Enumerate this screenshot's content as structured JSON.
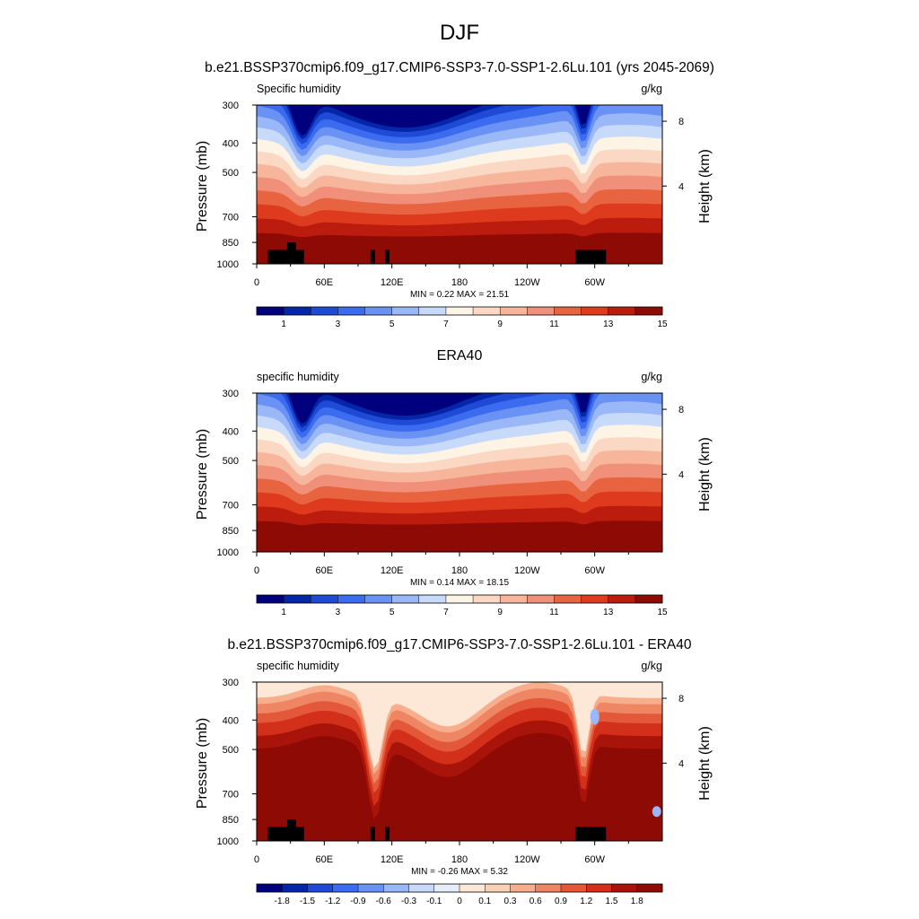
{
  "figure": {
    "title": "DJF"
  },
  "chart_data": [
    {
      "type": "heatmap",
      "title": "b.e21.BSSP370cmip6.f09_g17.CMIP6-SSP3-7.0-SSP1-2.6Lu.101 (yrs 2045-2069)",
      "left_label": "Specific humidity",
      "units": "g/kg",
      "ylabel": "Pressure (mb)",
      "y2label": "Height (km)",
      "x_ticks": [
        "0",
        "60E",
        "120E",
        "180",
        "120W",
        "60W"
      ],
      "x_tick_values": [
        0,
        60,
        120,
        180,
        240,
        300
      ],
      "xlim": [
        0,
        360
      ],
      "y_ticks": [
        "300",
        "400",
        "500",
        "700",
        "850",
        "1000"
      ],
      "y_tick_values": [
        300,
        400,
        500,
        700,
        850,
        1000
      ],
      "ylim": [
        1000,
        300
      ],
      "y_scale": "log",
      "y2_ticks": [
        "8",
        "4"
      ],
      "y2_tick_values": [
        8,
        4
      ],
      "stats": "MIN =   0.22  MAX =  21.51",
      "colorbar": {
        "labels": [
          "1",
          "3",
          "5",
          "7",
          "9",
          "11",
          "13",
          "15"
        ],
        "colors": [
          "#00007f",
          "#0426a8",
          "#1f4ad6",
          "#3b6cf0",
          "#6a92f5",
          "#9ab7f7",
          "#c8dafa",
          "#fdf4e6",
          "#fbd8c3",
          "#f7b69c",
          "#f1907a",
          "#e8633f",
          "#de3a1e",
          "#bb1c0d",
          "#8e0a05"
        ]
      },
      "topography_masked": true
    },
    {
      "type": "heatmap",
      "title": "ERA40",
      "left_label": "specific humidity",
      "units": "g/kg",
      "ylabel": "Pressure (mb)",
      "y2label": "Height (km)",
      "x_ticks": [
        "0",
        "60E",
        "120E",
        "180",
        "120W",
        "60W"
      ],
      "x_tick_values": [
        0,
        60,
        120,
        180,
        240,
        300
      ],
      "xlim": [
        0,
        360
      ],
      "y_ticks": [
        "300",
        "400",
        "500",
        "700",
        "850",
        "1000"
      ],
      "y_tick_values": [
        300,
        400,
        500,
        700,
        850,
        1000
      ],
      "ylim": [
        1000,
        300
      ],
      "y_scale": "log",
      "y2_ticks": [
        "8",
        "4"
      ],
      "y2_tick_values": [
        8,
        4
      ],
      "stats": "MIN =   0.14  MAX =  18.15",
      "colorbar": {
        "labels": [
          "1",
          "3",
          "5",
          "7",
          "9",
          "11",
          "13",
          "15"
        ],
        "colors": [
          "#00007f",
          "#0426a8",
          "#1f4ad6",
          "#3b6cf0",
          "#6a92f5",
          "#9ab7f7",
          "#c8dafa",
          "#fdf4e6",
          "#fbd8c3",
          "#f7b69c",
          "#f1907a",
          "#e8633f",
          "#de3a1e",
          "#bb1c0d",
          "#8e0a05"
        ]
      },
      "topography_masked": false
    },
    {
      "type": "heatmap",
      "title": "b.e21.BSSP370cmip6.f09_g17.CMIP6-SSP3-7.0-SSP1-2.6Lu.101 - ERA40",
      "left_label": "specific humidity",
      "units": "g/kg",
      "ylabel": "Pressure (mb)",
      "y2label": "Height (km)",
      "x_ticks": [
        "0",
        "60E",
        "120E",
        "180",
        "120W",
        "60W"
      ],
      "x_tick_values": [
        0,
        60,
        120,
        180,
        240,
        300
      ],
      "xlim": [
        0,
        360
      ],
      "y_ticks": [
        "300",
        "400",
        "500",
        "700",
        "850",
        "1000"
      ],
      "y_tick_values": [
        300,
        400,
        500,
        700,
        850,
        1000
      ],
      "ylim": [
        1000,
        300
      ],
      "y_scale": "log",
      "y2_ticks": [
        "8",
        "4"
      ],
      "y2_tick_values": [
        8,
        4
      ],
      "stats": "MIN =  -0.26  MAX =   5.32",
      "colorbar": {
        "labels": [
          "-1.8",
          "-1.5",
          "-1.2",
          "-0.9",
          "-0.6",
          "-0.3",
          "-0.1",
          "0",
          "0.1",
          "0.3",
          "0.6",
          "0.9",
          "1.2",
          "1.5",
          "1.8"
        ],
        "colors": [
          "#00007f",
          "#0426a8",
          "#1f4ad6",
          "#3b6cf0",
          "#6a92f5",
          "#9ab7f7",
          "#c8dafa",
          "#e6eefb",
          "#fde8d8",
          "#fbd1b6",
          "#f6ae8d",
          "#ef8663",
          "#e4583a",
          "#d2301a",
          "#a8130a",
          "#8e0a05"
        ]
      },
      "topography_masked": true
    }
  ]
}
